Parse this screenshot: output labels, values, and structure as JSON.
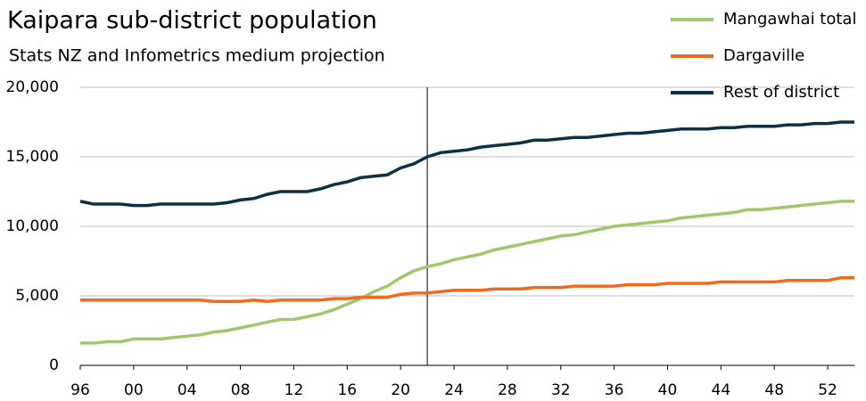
{
  "chart_data": {
    "type": "line",
    "title": "Kaipara sub-district population",
    "subtitle": "Stats NZ and Infometrics medium projection",
    "categories": [
      "96",
      null,
      null,
      null,
      "00",
      null,
      null,
      null,
      "04",
      null,
      null,
      null,
      "08",
      null,
      null,
      null,
      "12",
      null,
      null,
      null,
      "16",
      null,
      null,
      null,
      "20",
      null,
      null,
      null,
      "24",
      null,
      null,
      null,
      "28",
      null,
      null,
      null,
      "32",
      null,
      null,
      null,
      "36",
      null,
      null,
      null,
      "40",
      null,
      null,
      null,
      "44",
      null,
      null,
      null,
      "48",
      null,
      null,
      null,
      "52",
      null,
      null
    ],
    "series": [
      {
        "name": "Mangawhai total",
        "color": "#a3c76d",
        "values": [
          1600,
          1600,
          1700,
          1700,
          1900,
          1900,
          1900,
          2000,
          2100,
          2200,
          2400,
          2500,
          2700,
          2900,
          3100,
          3300,
          3300,
          3500,
          3700,
          4000,
          4400,
          4800,
          5300,
          5700,
          6300,
          6800,
          7100,
          7300,
          7600,
          7800,
          8000,
          8300,
          8500,
          8700,
          8900,
          9100,
          9300,
          9400,
          9600,
          9800,
          10000,
          10100,
          10200,
          10300,
          10400,
          10600,
          10700,
          10800,
          10900,
          11000,
          11200,
          11200,
          11300,
          11400,
          11500,
          11600,
          11700,
          11800,
          11800
        ]
      },
      {
        "name": "Dargaville",
        "color": "#f26b1d",
        "values": [
          4700,
          4700,
          4700,
          4700,
          4700,
          4700,
          4700,
          4700,
          4700,
          4700,
          4600,
          4600,
          4600,
          4700,
          4600,
          4700,
          4700,
          4700,
          4700,
          4800,
          4800,
          4900,
          4900,
          4900,
          5100,
          5200,
          5200,
          5300,
          5400,
          5400,
          5400,
          5500,
          5500,
          5500,
          5600,
          5600,
          5600,
          5700,
          5700,
          5700,
          5700,
          5800,
          5800,
          5800,
          5900,
          5900,
          5900,
          5900,
          6000,
          6000,
          6000,
          6000,
          6000,
          6100,
          6100,
          6100,
          6100,
          6300,
          6300
        ]
      },
      {
        "name": "Rest of district",
        "color": "#0d3049",
        "values": [
          11800,
          11600,
          11600,
          11600,
          11500,
          11500,
          11600,
          11600,
          11600,
          11600,
          11600,
          11700,
          11900,
          12000,
          12300,
          12500,
          12500,
          12500,
          12700,
          13000,
          13200,
          13500,
          13600,
          13700,
          14200,
          14500,
          15000,
          15300,
          15400,
          15500,
          15700,
          15800,
          15900,
          16000,
          16200,
          16200,
          16300,
          16400,
          16400,
          16500,
          16600,
          16700,
          16700,
          16800,
          16900,
          17000,
          17000,
          17000,
          17100,
          17100,
          17200,
          17200,
          17200,
          17300,
          17300,
          17400,
          17400,
          17500,
          17500
        ]
      }
    ],
    "ylim": [
      0,
      20000
    ],
    "yticks": [
      0,
      {
        "value": 5000,
        "label": "5,000"
      },
      {
        "value": 10000,
        "label": "10,000"
      },
      {
        "value": 15000,
        "label": "15,000"
      },
      {
        "value": 20000,
        "label": "20,000"
      }
    ],
    "grid": true,
    "vline": 26,
    "legend": "top-right"
  }
}
